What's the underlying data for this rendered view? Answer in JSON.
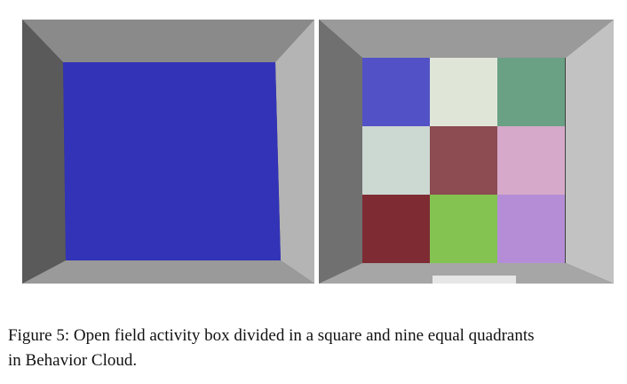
{
  "figure": {
    "caption_line1": "Figure 5: Open field activity box divided in a square and nine equal quadrants",
    "caption_line2": "in Behavior Cloud.",
    "left_panel": {
      "floor_color": "#3333b8"
    },
    "right_panel": {
      "quadrant_colors": [
        "#5252c6",
        "#dfe6d8",
        "#6aa184",
        "#ccd8d2",
        "#8c4c51",
        "#d6a9ca",
        "#7f2b33",
        "#84c351",
        "#b48dd6"
      ]
    }
  }
}
